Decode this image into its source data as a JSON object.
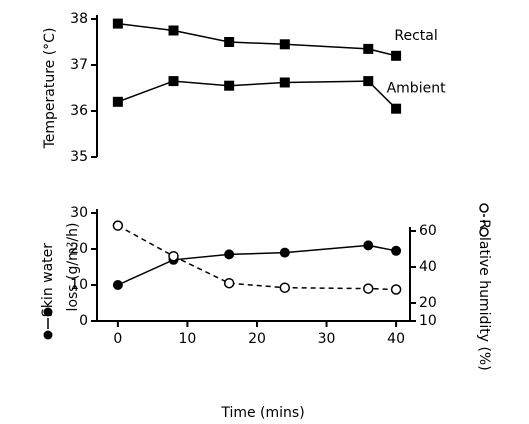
{
  "chart_data": [
    {
      "type": "line",
      "ylabel": "Temperature (°C)",
      "x": [
        0,
        8,
        16,
        24,
        36,
        40
      ],
      "xlim": [
        -3,
        42
      ],
      "ylim": [
        35,
        38
      ],
      "yticks": [
        35,
        36,
        37,
        38
      ],
      "annotations": [
        "Rectal",
        "Ambient"
      ],
      "series": [
        {
          "name": "Rectal",
          "color": "#000",
          "marker": "square",
          "line_style": "solid",
          "values": [
            37.9,
            37.75,
            37.5,
            37.45,
            37.35,
            37.2
          ]
        },
        {
          "name": "Ambient",
          "color": "#000",
          "marker": "square",
          "line_style": "solid",
          "values": [
            36.2,
            36.65,
            36.55,
            36.62,
            36.65,
            36.05
          ]
        }
      ]
    },
    {
      "type": "line",
      "xlabel": "Time (mins)",
      "ylabel": [
        "Skin water",
        "loss (g/m²/h)"
      ],
      "y2label": "Relative humidity (%)",
      "x": [
        0,
        8,
        16,
        24,
        36,
        40
      ],
      "xlim": [
        -3,
        42
      ],
      "xticks": [
        0,
        10,
        20,
        30,
        40
      ],
      "ylim": [
        0,
        30
      ],
      "yticks": [
        0,
        10,
        20,
        30
      ],
      "y2lim": [
        10,
        70
      ],
      "y2ticks": [
        10,
        20,
        40,
        60
      ],
      "series": [
        {
          "name": "Skin water loss",
          "color": "#000",
          "marker": "circle",
          "line_style": "solid",
          "values": [
            10,
            17,
            18.5,
            19,
            21,
            19.5
          ]
        },
        {
          "name": "Relative humidity",
          "axis": "y2",
          "color": "#000",
          "marker": "open-circle",
          "line_style": "dashed",
          "values": [
            63,
            46,
            31,
            28.5,
            28,
            27.5
          ]
        }
      ]
    }
  ]
}
